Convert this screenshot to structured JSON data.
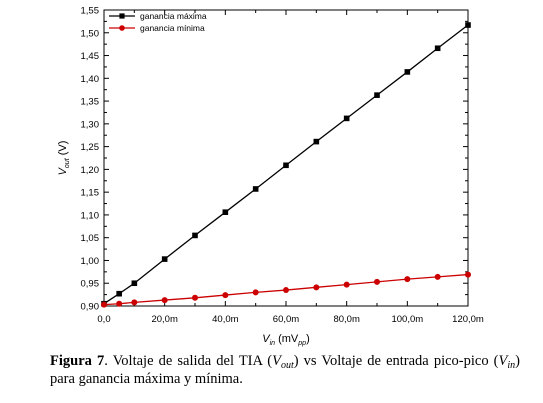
{
  "chart_data": {
    "type": "line",
    "x": [
      0,
      5,
      10,
      20,
      30,
      40,
      50,
      60,
      70,
      80,
      90,
      100,
      110,
      120
    ],
    "x_tick_labels": [
      "0,0",
      "20,0m",
      "40,0m",
      "60,0m",
      "80,0m",
      "100,0m",
      "120,0m"
    ],
    "x_ticks": [
      0,
      20,
      40,
      60,
      80,
      100,
      120
    ],
    "xlim": [
      0,
      120
    ],
    "ylim": [
      0.9,
      1.55
    ],
    "y_ticks": [
      0.9,
      0.95,
      1.0,
      1.05,
      1.1,
      1.15,
      1.2,
      1.25,
      1.3,
      1.35,
      1.4,
      1.45,
      1.5,
      1.55
    ],
    "y_tick_labels": [
      "0,90",
      "0,95",
      "1,00",
      "1,05",
      "1,10",
      "1,15",
      "1,20",
      "1,25",
      "1,30",
      "1,35",
      "1,40",
      "1,45",
      "1,50",
      "1,55"
    ],
    "xlabel": {
      "main": "V",
      "sub": "in",
      "rest": " (mV",
      "sub2": "pp",
      "close": ")"
    },
    "ylabel": {
      "main": "V",
      "sub": "out",
      "rest": " (V)"
    },
    "series": [
      {
        "name": "ganancia máxima",
        "color": "#000000",
        "marker": "square",
        "values": [
          0.905,
          0.927,
          0.95,
          1.003,
          1.055,
          1.106,
          1.157,
          1.209,
          1.261,
          1.312,
          1.363,
          1.414,
          1.466,
          1.517
        ]
      },
      {
        "name": "ganancia mínima",
        "color": "#cc0000",
        "marker": "circle",
        "values": [
          0.903,
          0.905,
          0.908,
          0.913,
          0.918,
          0.924,
          0.93,
          0.935,
          0.941,
          0.947,
          0.953,
          0.959,
          0.964,
          0.969
        ]
      }
    ],
    "legend_position": "top-left",
    "grid": false
  },
  "caption": {
    "label": "Figura",
    "number": "7",
    "part1": ". Voltaje de salida del TIA (",
    "vout_main": "V",
    "vout_sub": "out",
    "part2": ") vs Voltaje de entrada pico-pico (",
    "vin_main": "V",
    "vin_sub": "in",
    "part3": ") para ganancia máxima y mínima."
  }
}
